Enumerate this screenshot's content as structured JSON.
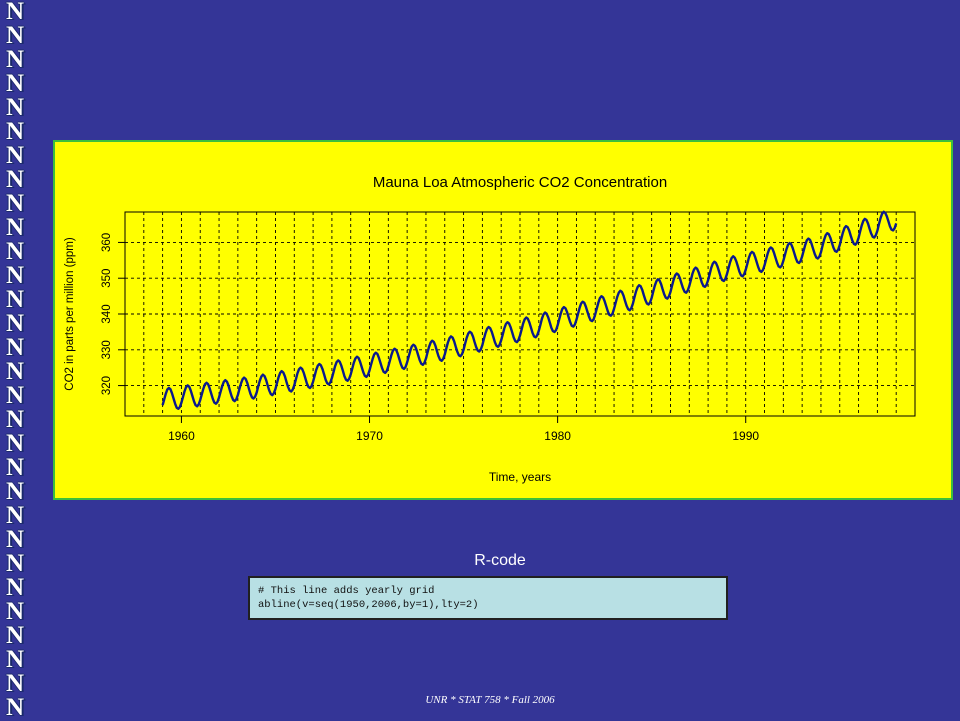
{
  "sidebar": {
    "logo_letter": "N",
    "logo_count": 30
  },
  "chart_data": {
    "type": "line",
    "title": "Mauna Loa Atmospheric CO2 Concentration",
    "xlabel": "Time, years",
    "ylabel": "CO2 in parts per million (ppm)",
    "xlim": [
      1957.0,
      1999.0
    ],
    "ylim": [
      311.5,
      368.5
    ],
    "x_ticks": [
      1960,
      1970,
      1980,
      1990
    ],
    "y_ticks": [
      320,
      330,
      340,
      350,
      360
    ],
    "grid": {
      "vertical": "yearly 1950-2006, dashed",
      "horizontal": "at y ticks, dashed"
    },
    "series": [
      {
        "color": "#0a1a8c",
        "start_year": 1959.0,
        "end_year": 1998.0,
        "annual_means": [
          [
            1959,
            316.0
          ],
          [
            1964,
            319.6
          ],
          [
            1969,
            324.6
          ],
          [
            1974,
            330.2
          ],
          [
            1979,
            336.8
          ],
          [
            1984,
            344.4
          ],
          [
            1989,
            352.6
          ],
          [
            1994,
            358.8
          ],
          [
            1998,
            366.8
          ]
        ],
        "seasonal_amplitude": 6.2
      }
    ]
  },
  "code_section": {
    "title": "R-code",
    "lines": [
      "# This line adds yearly grid",
      "abline(v=seq(1950,2006,by=1),lty=2)"
    ]
  },
  "footer": {
    "text": "UNR * STAT 758 * Fall 2006"
  }
}
